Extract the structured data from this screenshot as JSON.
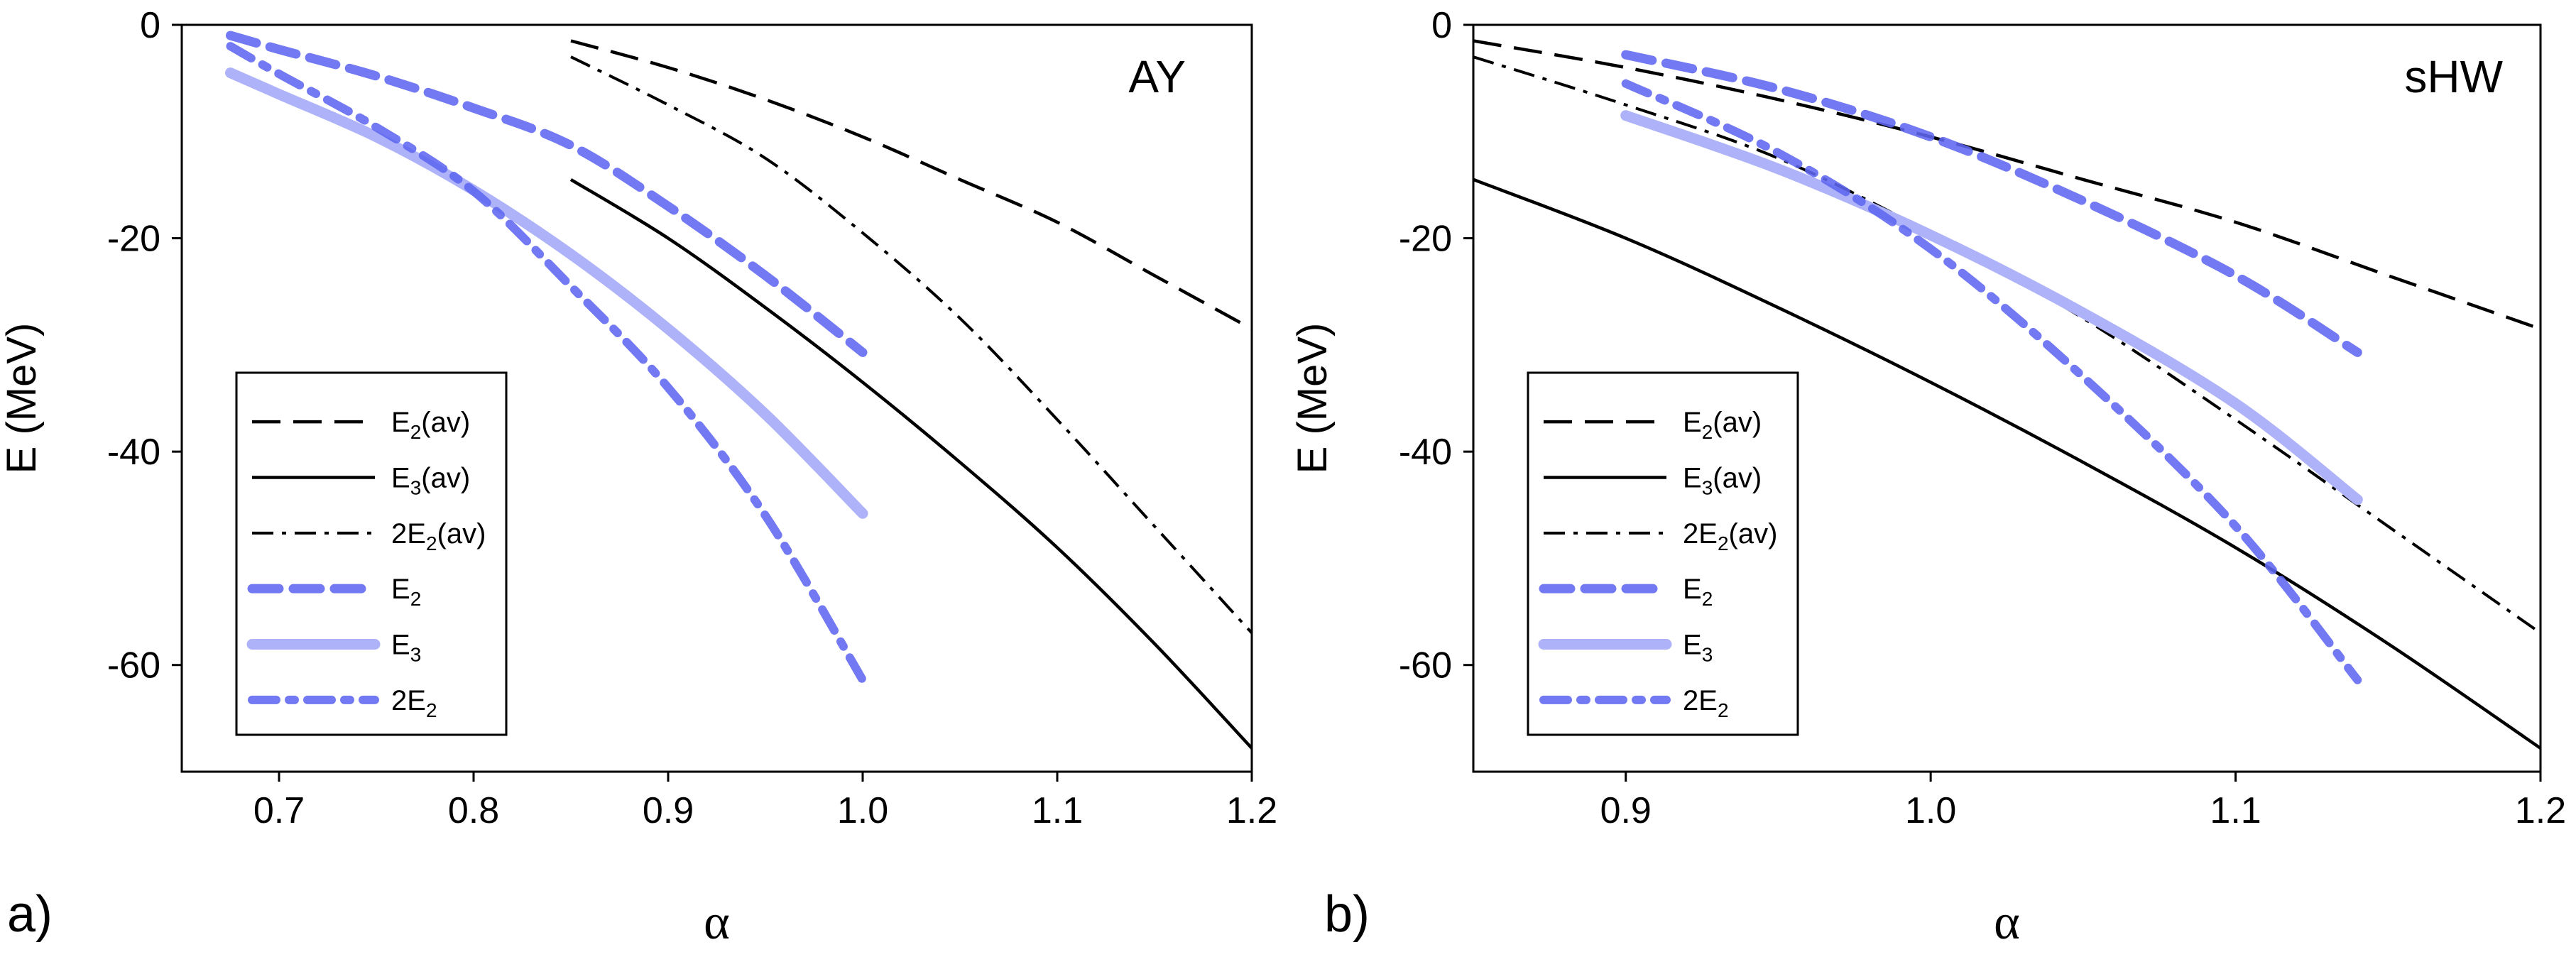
{
  "chart_data": [
    {
      "type": "line",
      "panel_tag": "a)",
      "title": "AY",
      "xlabel": "α",
      "ylabel": "E (MeV)",
      "xlim": [
        0.65,
        1.2
      ],
      "ylim": [
        -70,
        0
      ],
      "xticks": [
        0.7,
        0.8,
        0.9,
        1.0,
        1.1,
        1.2
      ],
      "xtick_labels": [
        "0.7",
        "0.8",
        "0.9",
        "1.0",
        "1.1",
        "1.2"
      ],
      "yticks": [
        0,
        -20,
        -40,
        -60
      ],
      "ytick_labels": [
        "0",
        "-20",
        "-40",
        "-60"
      ],
      "legend": [
        {
          "series": "E2_av",
          "base": "E",
          "sub": "2",
          "suffix": "(av)",
          "prefix": ""
        },
        {
          "series": "E3_av",
          "base": "E",
          "sub": "3",
          "suffix": "(av)",
          "prefix": ""
        },
        {
          "series": "2E2_av",
          "base": "E",
          "sub": "2",
          "suffix": "(av)",
          "prefix": "2"
        },
        {
          "series": "E2",
          "base": "E",
          "sub": "2",
          "suffix": "",
          "prefix": ""
        },
        {
          "series": "E3",
          "base": "E",
          "sub": "3",
          "suffix": "",
          "prefix": ""
        },
        {
          "series": "2E2",
          "base": "E",
          "sub": "2",
          "suffix": "",
          "prefix": "2"
        }
      ],
      "series": [
        {
          "id": "E2_av",
          "name": "E2(av)",
          "color": "#000000",
          "style": "dash",
          "x": [
            0.85,
            0.9,
            0.95,
            1.0,
            1.05,
            1.1,
            1.15,
            1.2
          ],
          "y": [
            -1.5,
            -4.0,
            -7.0,
            -10.5,
            -14.5,
            -18.5,
            -23.5,
            -28.5
          ]
        },
        {
          "id": "E3_av",
          "name": "E3(av)",
          "color": "#000000",
          "style": "solid",
          "x": [
            0.85,
            0.9,
            0.95,
            1.0,
            1.05,
            1.1,
            1.15,
            1.2
          ],
          "y": [
            -14.5,
            -20.0,
            -26.5,
            -33.5,
            -41.0,
            -49.0,
            -58.0,
            -67.8
          ]
        },
        {
          "id": "2E2_av",
          "name": "2E2(av)",
          "color": "#000000",
          "style": "dashdot",
          "x": [
            0.85,
            0.9,
            0.95,
            1.0,
            1.05,
            1.1,
            1.15,
            1.2
          ],
          "y": [
            -3.0,
            -7.5,
            -12.5,
            -19.5,
            -27.5,
            -37.0,
            -47.0,
            -57.0
          ]
        },
        {
          "id": "E2",
          "name": "E2",
          "color": "#5f67f0",
          "style": "bluedash",
          "x": [
            0.675,
            0.7,
            0.75,
            0.8,
            0.85,
            0.9,
            0.95,
            1.0
          ],
          "y": [
            -1.0,
            -2.3,
            -4.8,
            -7.8,
            -11.3,
            -17.0,
            -23.5,
            -30.7
          ]
        },
        {
          "id": "E3",
          "name": "E3",
          "color": "#aeb2f8",
          "style": "bluesolid",
          "x": [
            0.675,
            0.7,
            0.75,
            0.8,
            0.85,
            0.9,
            0.95,
            1.0
          ],
          "y": [
            -4.5,
            -6.5,
            -10.5,
            -15.5,
            -21.5,
            -28.5,
            -36.5,
            -45.8
          ]
        },
        {
          "id": "2E2",
          "name": "2E2",
          "color": "#5f67f0",
          "style": "bluedashdot",
          "x": [
            0.675,
            0.7,
            0.75,
            0.8,
            0.85,
            0.9,
            0.95,
            1.0
          ],
          "y": [
            -2.0,
            -4.6,
            -9.6,
            -15.6,
            -24.5,
            -34.0,
            -46.0,
            -61.4
          ]
        }
      ]
    },
    {
      "type": "line",
      "panel_tag": "b)",
      "title": "sHW",
      "xlabel": "α",
      "ylabel": "E (MeV)",
      "xlim": [
        0.85,
        1.2
      ],
      "ylim": [
        -70,
        0
      ],
      "xticks": [
        0.9,
        1.0,
        1.1,
        1.2
      ],
      "xtick_labels": [
        "0.9",
        "1.0",
        "1.1",
        "1.2"
      ],
      "yticks": [
        0,
        -20,
        -40,
        -60
      ],
      "ytick_labels": [
        "0",
        "-20",
        "-40",
        "-60"
      ],
      "legend": [
        {
          "series": "E2_av",
          "base": "E",
          "sub": "2",
          "suffix": "(av)",
          "prefix": ""
        },
        {
          "series": "E3_av",
          "base": "E",
          "sub": "3",
          "suffix": "(av)",
          "prefix": ""
        },
        {
          "series": "2E2_av",
          "base": "E",
          "sub": "2",
          "suffix": "(av)",
          "prefix": "2"
        },
        {
          "series": "E2",
          "base": "E",
          "sub": "2",
          "suffix": "",
          "prefix": ""
        },
        {
          "series": "E3",
          "base": "E",
          "sub": "3",
          "suffix": "",
          "prefix": ""
        },
        {
          "series": "2E2",
          "base": "E",
          "sub": "2",
          "suffix": "",
          "prefix": "2"
        }
      ],
      "series": [
        {
          "id": "E2_av",
          "name": "E2(av)",
          "color": "#000000",
          "style": "dash",
          "x": [
            0.85,
            0.9,
            0.95,
            1.0,
            1.05,
            1.1,
            1.15,
            1.2
          ],
          "y": [
            -1.5,
            -4.0,
            -7.0,
            -10.5,
            -14.5,
            -18.5,
            -23.5,
            -28.5
          ]
        },
        {
          "id": "E3_av",
          "name": "E3(av)",
          "color": "#000000",
          "style": "solid",
          "x": [
            0.85,
            0.9,
            0.95,
            1.0,
            1.05,
            1.1,
            1.15,
            1.2
          ],
          "y": [
            -14.5,
            -20.0,
            -26.5,
            -33.5,
            -41.0,
            -49.0,
            -58.0,
            -67.8
          ]
        },
        {
          "id": "2E2_av",
          "name": "2E2(av)",
          "color": "#000000",
          "style": "dashdot",
          "x": [
            0.85,
            0.9,
            0.95,
            1.0,
            1.05,
            1.1,
            1.15,
            1.2
          ],
          "y": [
            -3.0,
            -7.5,
            -12.5,
            -19.5,
            -27.5,
            -37.0,
            -47.0,
            -57.0
          ]
        },
        {
          "id": "E2",
          "name": "E2",
          "color": "#5f67f0",
          "style": "bluedash",
          "x": [
            0.9,
            0.95,
            1.0,
            1.05,
            1.1,
            1.14
          ],
          "y": [
            -2.8,
            -6.0,
            -10.5,
            -16.5,
            -23.5,
            -30.7
          ]
        },
        {
          "id": "E3",
          "name": "E3",
          "color": "#aeb2f8",
          "style": "bluesolid",
          "x": [
            0.9,
            0.95,
            1.0,
            1.05,
            1.1,
            1.14
          ],
          "y": [
            -8.5,
            -13.5,
            -19.7,
            -27.0,
            -35.5,
            -44.5
          ]
        },
        {
          "id": "2E2",
          "name": "2E2",
          "color": "#5f67f0",
          "style": "bluedashdot",
          "x": [
            0.9,
            0.95,
            1.0,
            1.05,
            1.1,
            1.14
          ],
          "y": [
            -5.5,
            -12.0,
            -21.0,
            -33.0,
            -47.0,
            -61.4
          ]
        }
      ]
    }
  ]
}
